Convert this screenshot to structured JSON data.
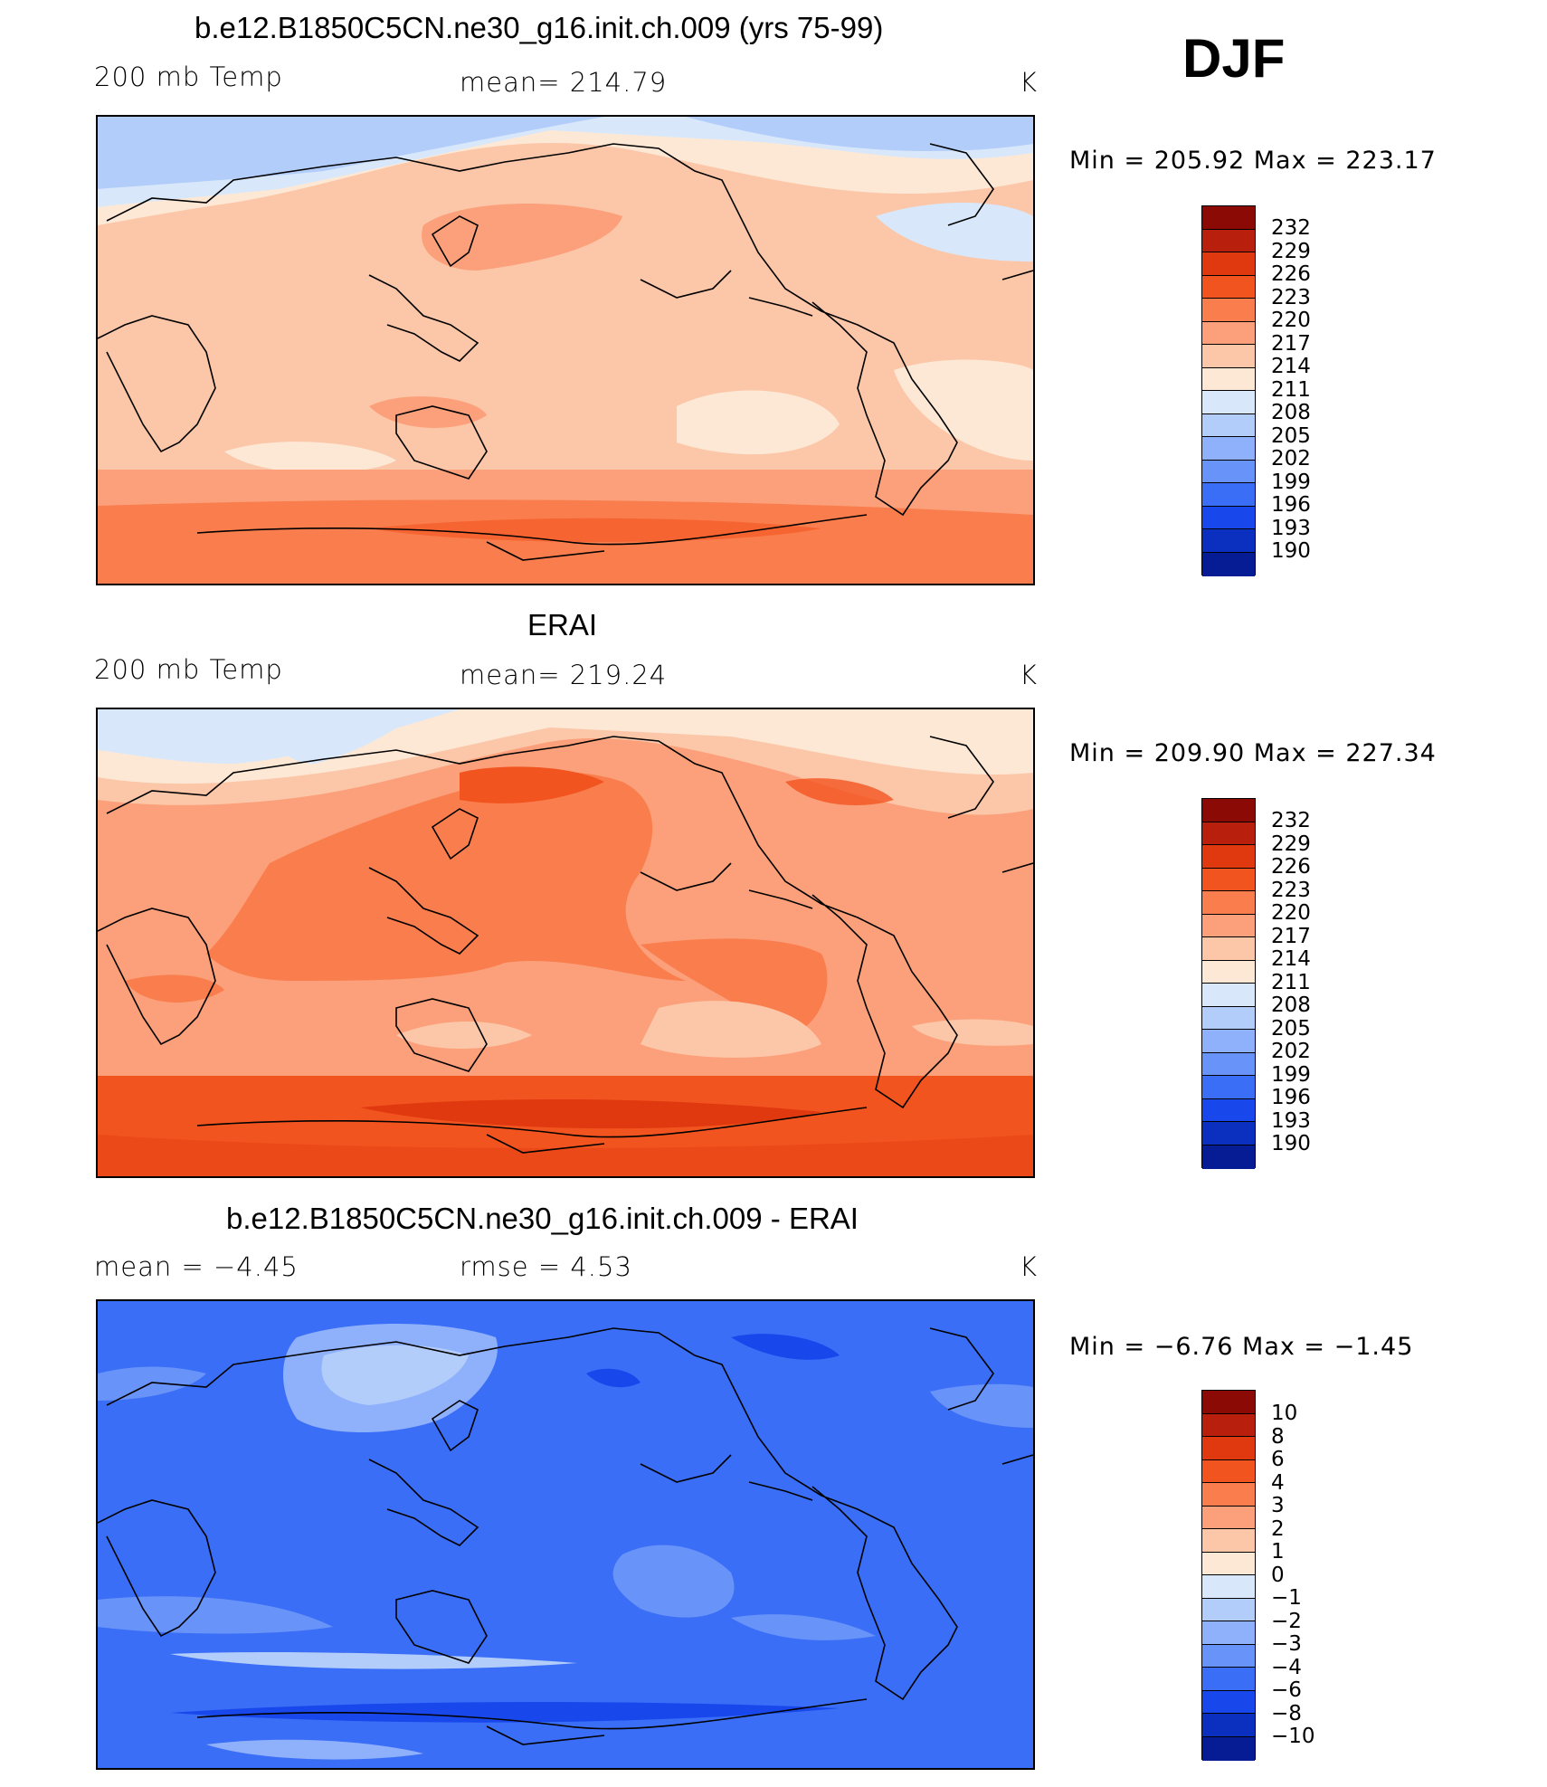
{
  "season": "DJF",
  "panels": [
    {
      "title": "b.e12.B1850C5CN.ne30_g16.init.ch.009 (yrs 75-99)",
      "left_label": "200 mb Temp",
      "center_label": "mean=  214.79",
      "units": "K",
      "minmax": "Min  =  205.92  Max  =  223.17",
      "colorbar_labels": [
        "232",
        "229",
        "226",
        "223",
        "220",
        "217",
        "214",
        "211",
        "208",
        "205",
        "202",
        "199",
        "196",
        "193",
        "190"
      ]
    },
    {
      "title": "ERAI",
      "left_label": "200 mb Temp",
      "center_label": "mean=  219.24",
      "units": "K",
      "minmax": "Min  =  209.90  Max  =  227.34",
      "colorbar_labels": [
        "232",
        "229",
        "226",
        "223",
        "220",
        "217",
        "214",
        "211",
        "208",
        "205",
        "202",
        "199",
        "196",
        "193",
        "190"
      ]
    },
    {
      "title": "b.e12.B1850C5CN.ne30_g16.init.ch.009 - ERAI",
      "left_label": "mean  =    −4.45",
      "center_label": "rmse  =     4.53",
      "units": "K",
      "minmax": "Min  =    −6.76  Max  =    −1.45",
      "colorbar_labels": [
        "10",
        "8",
        "6",
        "4",
        "3",
        "2",
        "1",
        "0",
        "−1",
        "−2",
        "−3",
        "−4",
        "−6",
        "−8",
        "−10"
      ]
    }
  ],
  "colors": {
    "palette_top_to_bottom": [
      "#8c0a05",
      "#b81f0c",
      "#e0390f",
      "#f2541f",
      "#fa7d4d",
      "#fba07a",
      "#fcc7a8",
      "#fde8d6",
      "#d8e8fa",
      "#b3cdfb",
      "#8fb1fb",
      "#6893f9",
      "#3b6ef6",
      "#1848ec",
      "#0b2fbf",
      "#051c94"
    ]
  }
}
